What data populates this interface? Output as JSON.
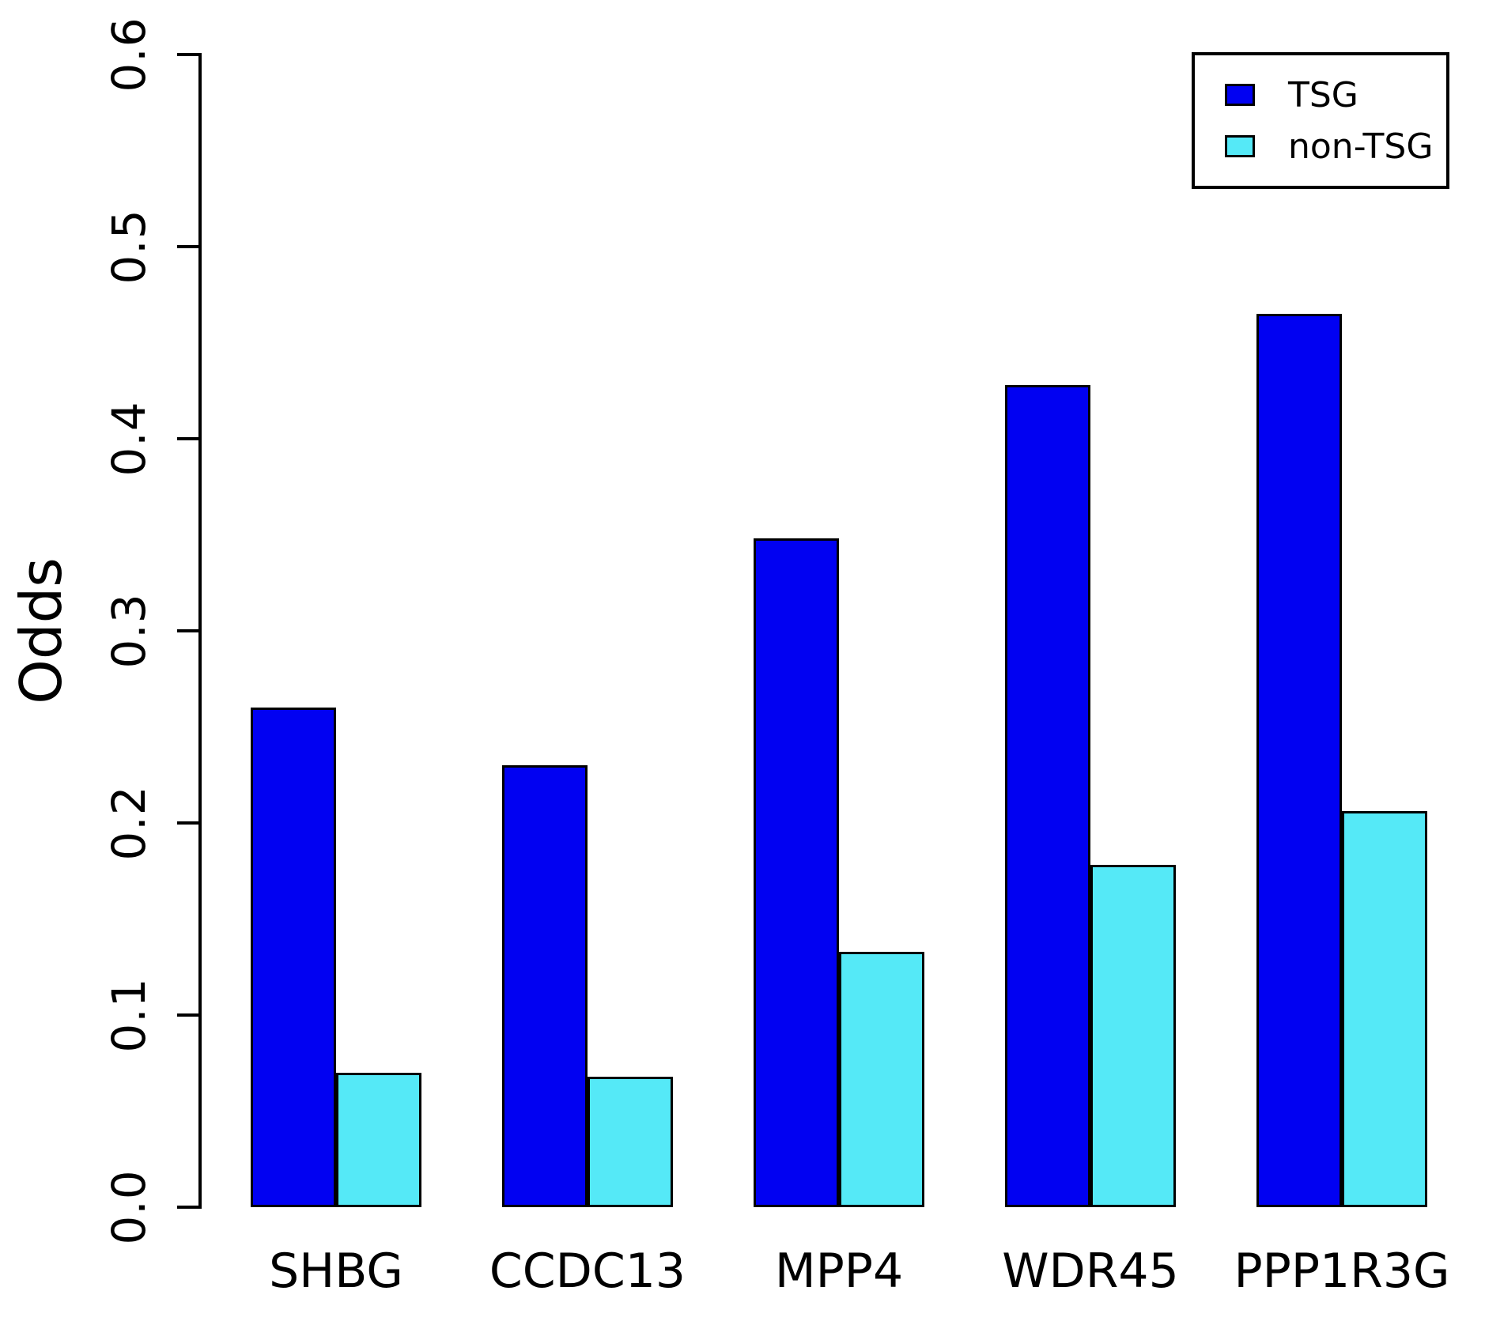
{
  "chart_data": {
    "type": "bar",
    "title": "",
    "xlabel": "",
    "ylabel": "Odds",
    "ylim": [
      0,
      0.6
    ],
    "yticks": [
      "0.0",
      "0.1",
      "0.2",
      "0.3",
      "0.4",
      "0.5",
      "0.6"
    ],
    "grid": false,
    "legend_position": "top-right",
    "categories": [
      "SHBG",
      "CCDC13",
      "MPP4",
      "WDR45",
      "PPP1R3G"
    ],
    "series": [
      {
        "name": "TSG",
        "color": "#0101f2",
        "values": [
          0.26,
          0.23,
          0.348,
          0.428,
          0.465
        ]
      },
      {
        "name": "non-TSG",
        "color": "#55e9f7",
        "values": [
          0.07,
          0.068,
          0.133,
          0.178,
          0.206
        ]
      }
    ],
    "colors": {
      "axis": "#000000",
      "bar_border": "#000000"
    }
  }
}
